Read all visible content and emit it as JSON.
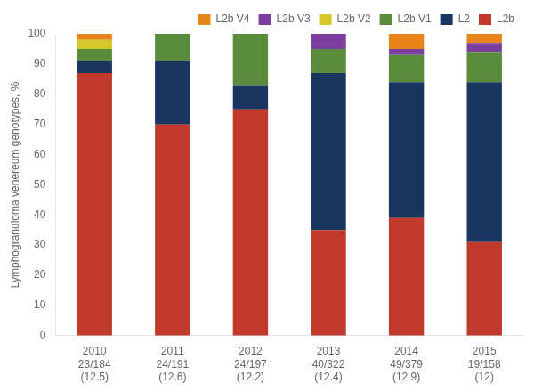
{
  "chart_data": {
    "type": "bar",
    "stacked": true,
    "categories": [
      "2010\n23/184\n(12.5)",
      "2011\n24/191\n(12.6)",
      "2012\n24/197\n(12.2)",
      "2013\n40/322\n(12.4)",
      "2014\n49/379\n(12.9)",
      "2015\n19/158\n(12)"
    ],
    "series": [
      {
        "name": "L2b",
        "color": "#c0392b",
        "values": [
          87,
          70,
          75,
          35,
          39,
          31
        ]
      },
      {
        "name": "L2",
        "color": "#1a3560",
        "values": [
          4,
          21,
          8,
          52,
          45,
          53
        ]
      },
      {
        "name": "L2b V1",
        "color": "#5a8a3c",
        "values": [
          4,
          9,
          17,
          8,
          9,
          10
        ]
      },
      {
        "name": "L2b V2",
        "color": "#d4c829",
        "values": [
          3,
          0,
          0,
          0,
          0,
          0
        ]
      },
      {
        "name": "L2b V3",
        "color": "#7b3fa0",
        "values": [
          0,
          0,
          0,
          5,
          2,
          3
        ]
      },
      {
        "name": "L2b V4",
        "color": "#e8851a",
        "values": [
          2,
          0,
          0,
          0,
          5,
          3
        ]
      }
    ],
    "y_label": "Lymphogranuloma venereum genotypes, %",
    "ylim": [
      0,
      100
    ],
    "yticks": [
      0,
      10,
      20,
      30,
      40,
      50,
      60,
      70,
      80,
      90,
      100
    ],
    "grid": false,
    "legend": "upper right"
  }
}
